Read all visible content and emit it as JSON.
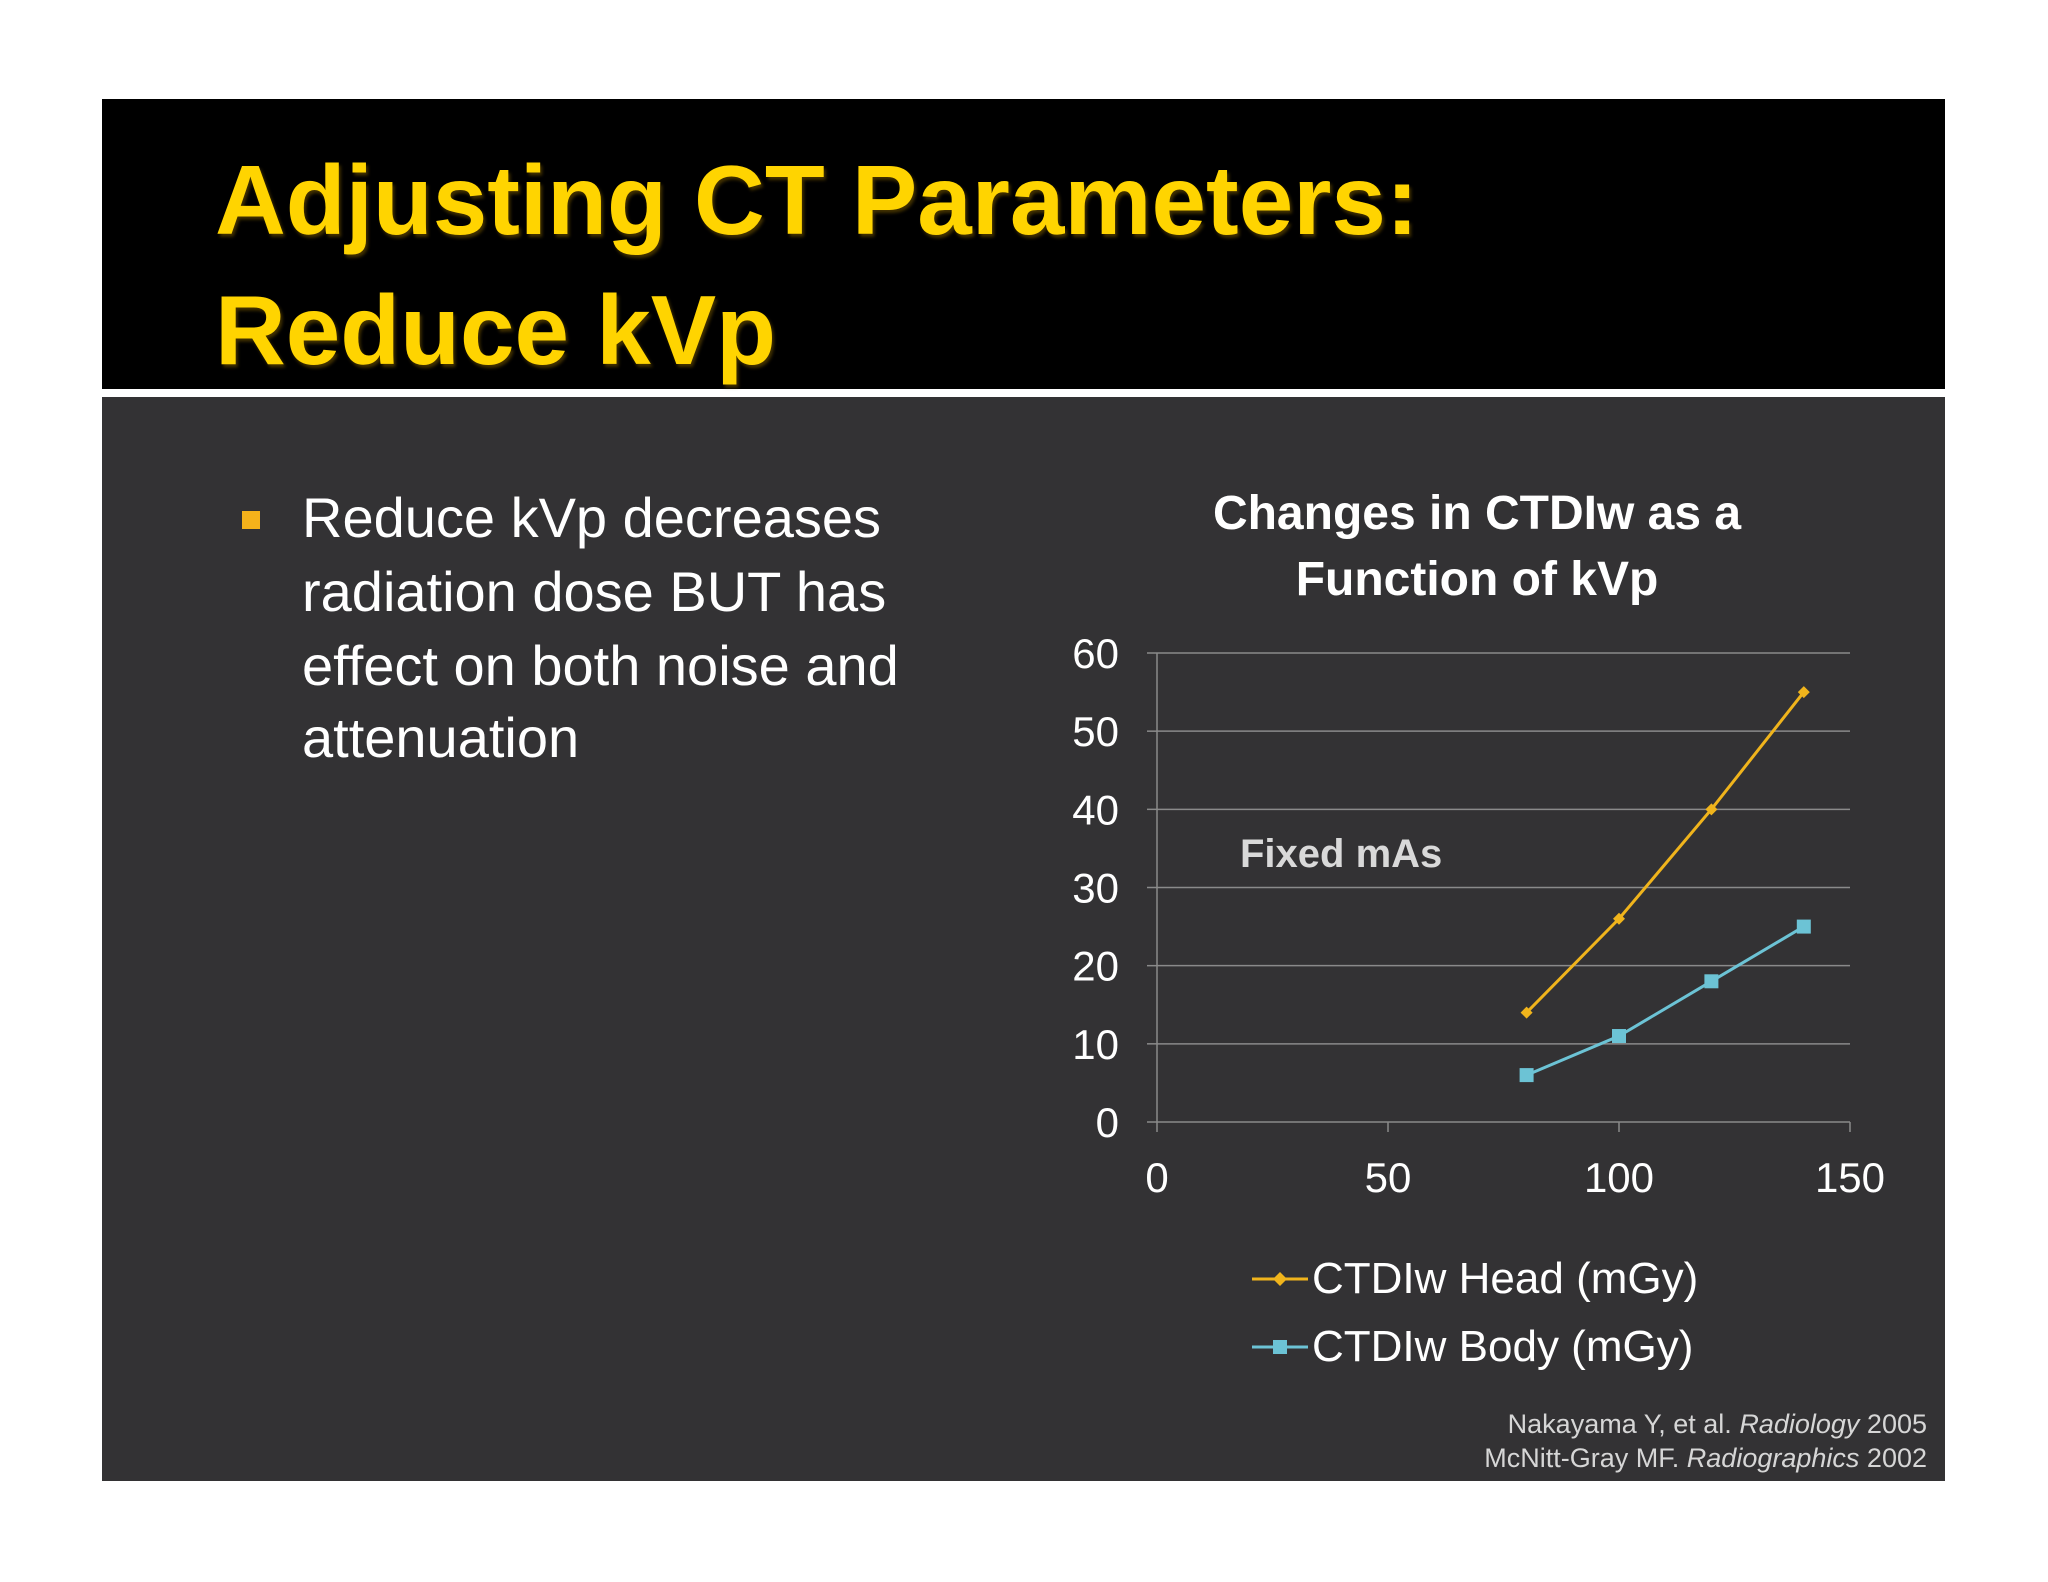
{
  "slide": {
    "title_lines": [
      "Adjusting CT Parameters:",
      "Reduce kVp"
    ],
    "bullet_lines": [
      "Reduce kVp decreases",
      "radiation dose BUT has",
      "effect on both noise and",
      "attenuation"
    ],
    "annotation": "Fixed mAs",
    "citations": [
      {
        "author": "Nakayama Y, et al.",
        "journal": "Radiology",
        "year": "2005"
      },
      {
        "author": "McNitt-Gray MF.",
        "journal": "Radiographics",
        "year": "2002"
      }
    ],
    "colors": {
      "title": "#ffd400",
      "bullet": "#f5b21b",
      "background": "#333234",
      "header": "#000000"
    }
  },
  "chart_data": {
    "type": "scatter",
    "title_lines": [
      "Changes in CTDIw as a",
      "Function of kVp"
    ],
    "xlabel": "",
    "ylabel": "",
    "xlim": [
      0,
      150
    ],
    "ylim": [
      0,
      60
    ],
    "x_ticks": [
      "0",
      "50",
      "100",
      "150"
    ],
    "y_ticks": [
      "0",
      "10",
      "20",
      "30",
      "40",
      "50",
      "60"
    ],
    "grid": "horizontal",
    "legend_position": "bottom",
    "series": [
      {
        "name": "CTDIw Head (mGy)",
        "color": "#f0b41c",
        "marker": "diamond",
        "points": [
          {
            "x": 80,
            "y": 14
          },
          {
            "x": 100,
            "y": 26
          },
          {
            "x": 120,
            "y": 40
          },
          {
            "x": 140,
            "y": 55
          }
        ]
      },
      {
        "name": "CTDIw Body (mGy)",
        "color": "#6cc3d5",
        "marker": "square",
        "points": [
          {
            "x": 80,
            "y": 6
          },
          {
            "x": 100,
            "y": 11
          },
          {
            "x": 120,
            "y": 18
          },
          {
            "x": 140,
            "y": 25
          }
        ]
      }
    ]
  }
}
